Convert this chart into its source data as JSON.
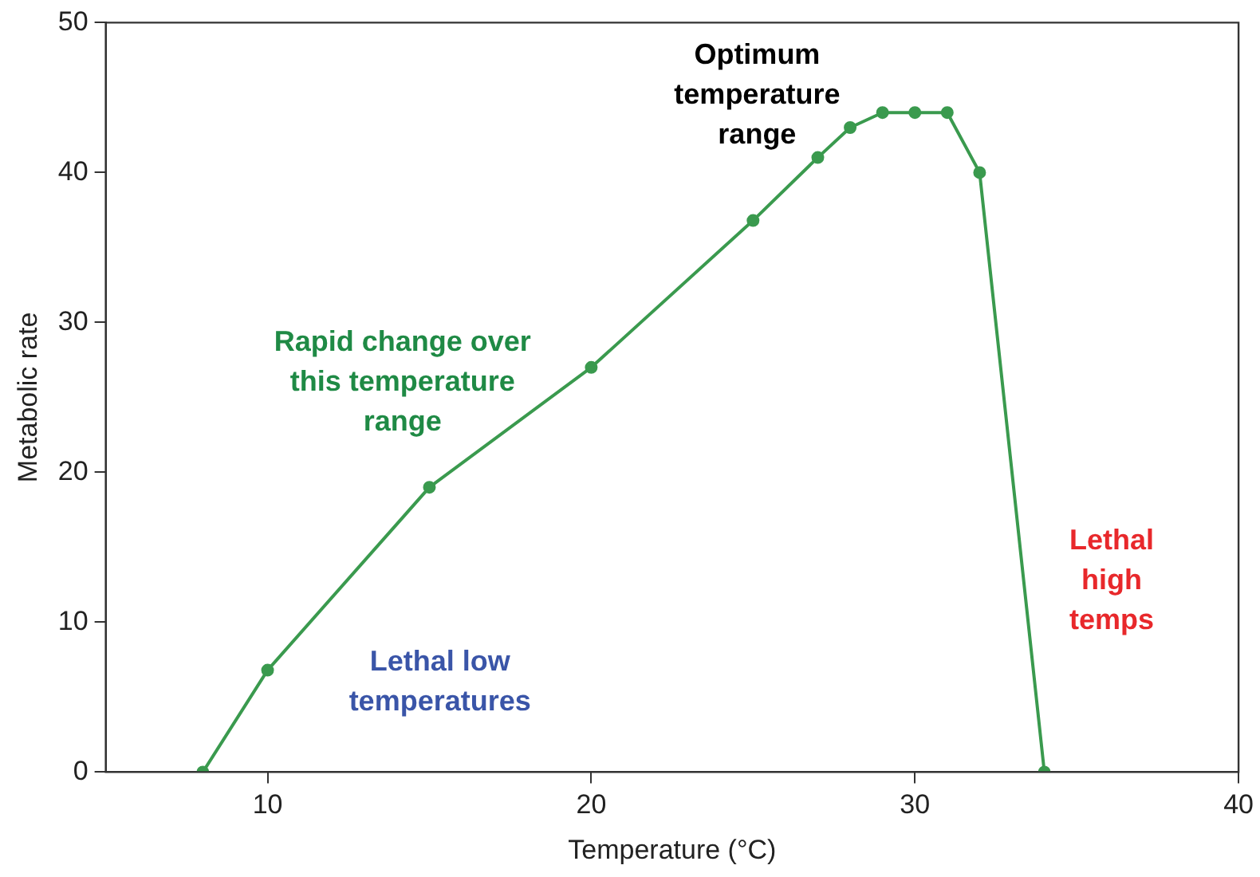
{
  "chart_data": {
    "type": "line",
    "xlabel": "Temperature (°C)",
    "ylabel": "Metabolic rate",
    "x": [
      8,
      10,
      15,
      20,
      25,
      27,
      28,
      29,
      30,
      31,
      32,
      34
    ],
    "series": [
      {
        "color": "#3a9a4e",
        "values": [
          0,
          6.8,
          19,
          27,
          36.8,
          41,
          43,
          44,
          44,
          44,
          40,
          0
        ]
      }
    ],
    "xlim": [
      5,
      40
    ],
    "xticks": [
      10,
      20,
      30,
      40
    ],
    "ylim": [
      0,
      50
    ],
    "yticks": [
      0,
      10,
      20,
      30,
      40,
      50
    ],
    "grid": false,
    "legend": false,
    "marker": "circle",
    "line_style": "solid",
    "annotations": [
      "Optimum\ntemperature\nrange",
      "Rapid change over\nthis temperature\nrange",
      "Lethal low\ntemperatures",
      "Lethal\nhigh\ntemps"
    ]
  }
}
